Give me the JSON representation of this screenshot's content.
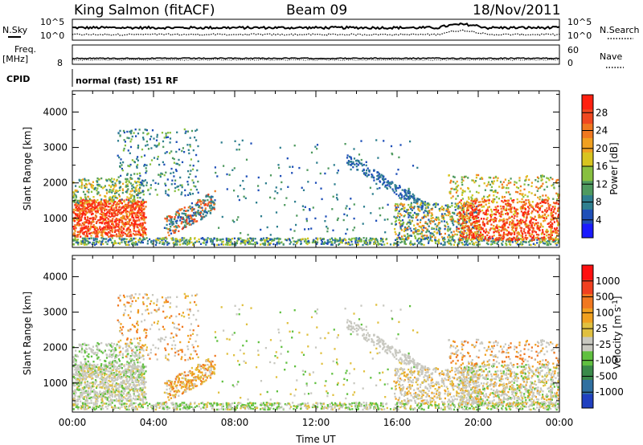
{
  "header": {
    "station": "King Salmon (fitACF)",
    "beam": "Beam 09",
    "date": "18/Nov/2011"
  },
  "aux": {
    "nsky_label": "N.Sky",
    "nsearch_label": "N.Search",
    "nsky_ticks": [
      "10^5",
      "10^0"
    ],
    "nsearch_ticks": [
      "10^5",
      "10^0"
    ],
    "freq_label": "Freq.",
    "freq_unit": "[MHz]",
    "freq_tick": "8",
    "nave_label": "Nave",
    "nave_ticks": [
      "60",
      "0"
    ],
    "cpid_label": "CPID",
    "cpid_value": "normal (fast) 151 RF"
  },
  "chart_data": [
    {
      "type": "heatmap",
      "name": "power",
      "ylabel": "Slant Range [km]",
      "xlabel": "",
      "x_ticks": [
        "00:00",
        "04:00",
        "08:00",
        "12:00",
        "16:00",
        "20:00",
        "00:00"
      ],
      "x_range_hours": [
        0,
        24
      ],
      "ylim": [
        180,
        4600
      ],
      "y_ticks": [
        1000,
        2000,
        3000,
        4000
      ],
      "grid": false,
      "colorbar": {
        "label": "Power [dB]",
        "ticks": [
          "4",
          "8",
          "12",
          "16",
          "20",
          "24",
          "28"
        ],
        "colors": [
          "#1a1aff",
          "#1f4fb8",
          "#2f7f8f",
          "#4f9a5f",
          "#88c040",
          "#d8c420",
          "#f0a020",
          "#f07820",
          "#f04820",
          "#ff2010"
        ]
      }
    },
    {
      "type": "heatmap",
      "name": "velocity",
      "ylabel": "Slant Range [km]",
      "xlabel": "Time UT",
      "x_ticks": [
        "00:00",
        "04:00",
        "08:00",
        "12:00",
        "16:00",
        "20:00",
        "00:00"
      ],
      "x_range_hours": [
        0,
        24
      ],
      "ylim": [
        180,
        4600
      ],
      "y_ticks": [
        1000,
        2000,
        3000,
        4000
      ],
      "grid": false,
      "colorbar": {
        "label": "Velocity [m s",
        "label_sup": "-1",
        "label_end": "]",
        "ticks": [
          "1000",
          "500",
          "100",
          "25",
          "-25",
          "-100",
          "-500",
          "-1000"
        ],
        "colors": [
          "#2040c0",
          "#3070a0",
          "#3a8a4a",
          "#60c040",
          "#c8c8c0",
          "#e0c040",
          "#f0a020",
          "#f07820",
          "#f04020",
          "#ff1010"
        ]
      }
    }
  ]
}
